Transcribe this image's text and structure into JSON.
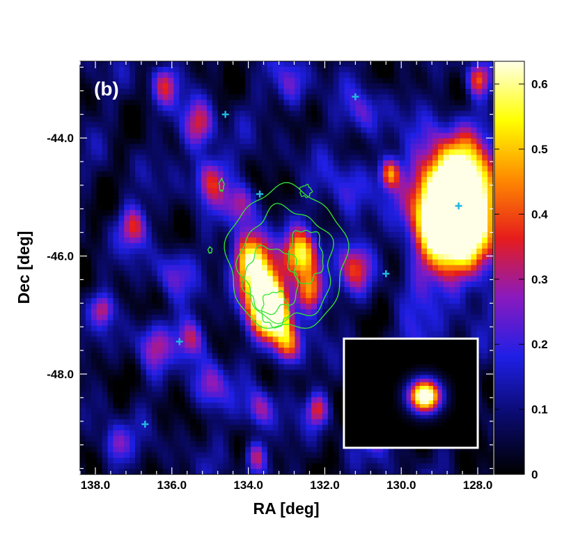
{
  "chart_data": {
    "type": "heatmap",
    "panel_label": "(b)",
    "xlabel": "RA [deg]",
    "ylabel": "Dec [deg]",
    "x_ticks": [
      "138.0",
      "136.0",
      "134.0",
      "132.0",
      "130.0",
      "128.0"
    ],
    "x_tick_values": [
      138.0,
      136.0,
      134.0,
      132.0,
      130.0,
      128.0
    ],
    "y_ticks": [
      "-44.0",
      "-46.0",
      "-48.0"
    ],
    "y_tick_values": [
      -44.0,
      -46.0,
      -48.0
    ],
    "xlim": [
      138.4,
      127.6
    ],
    "ylim": [
      -49.7,
      -42.7
    ],
    "x_reversed": true,
    "colorbar": {
      "ticks": [
        "0",
        "0.1",
        "0.2",
        "0.3",
        "0.4",
        "0.5",
        "0.6"
      ],
      "tick_values": [
        0,
        0.1,
        0.2,
        0.3,
        0.4,
        0.5,
        0.6
      ],
      "range": [
        0,
        0.635
      ],
      "colormap": [
        "#000000",
        "#0a0a6e",
        "#1f1fe6",
        "#8a1abf",
        "#e61c1c",
        "#ff8a00",
        "#ffff00",
        "#ffffe8"
      ]
    },
    "sources": [
      {
        "ra": 137.0,
        "dec": -45.5,
        "amp": 0.3,
        "sigma": 0.25
      },
      {
        "ra": 136.2,
        "dec": -43.1,
        "amp": 0.25,
        "sigma": 0.25
      },
      {
        "ra": 135.3,
        "dec": -43.8,
        "amp": 0.28,
        "sigma": 0.3
      },
      {
        "ra": 135.0,
        "dec": -44.7,
        "amp": 0.3,
        "sigma": 0.3
      },
      {
        "ra": 134.2,
        "dec": -45.1,
        "amp": 0.25,
        "sigma": 0.25
      },
      {
        "ra": 133.9,
        "dec": -46.1,
        "amp": 0.58,
        "sigma": 0.35
      },
      {
        "ra": 133.6,
        "dec": -46.7,
        "amp": 0.55,
        "sigma": 0.35
      },
      {
        "ra": 133.3,
        "dec": -47.0,
        "amp": 0.55,
        "sigma": 0.3
      },
      {
        "ra": 133.0,
        "dec": -47.5,
        "amp": 0.38,
        "sigma": 0.25
      },
      {
        "ra": 132.6,
        "dec": -46.0,
        "amp": 0.5,
        "sigma": 0.3
      },
      {
        "ra": 132.4,
        "dec": -46.6,
        "amp": 0.42,
        "sigma": 0.25
      },
      {
        "ra": 132.9,
        "dec": -43.1,
        "amp": 0.2,
        "sigma": 0.3
      },
      {
        "ra": 131.0,
        "dec": -43.6,
        "amp": 0.2,
        "sigma": 0.3
      },
      {
        "ra": 130.3,
        "dec": -44.6,
        "amp": 0.35,
        "sigma": 0.18
      },
      {
        "ra": 131.2,
        "dec": -46.2,
        "amp": 0.28,
        "sigma": 0.3
      },
      {
        "ra": 128.6,
        "dec": -45.2,
        "amp": 1.2,
        "sigma": 0.7
      },
      {
        "ra": 128.0,
        "dec": -43.0,
        "amp": 0.32,
        "sigma": 0.2
      },
      {
        "ra": 137.8,
        "dec": -46.9,
        "amp": 0.25,
        "sigma": 0.2
      },
      {
        "ra": 136.5,
        "dec": -47.5,
        "amp": 0.22,
        "sigma": 0.3
      },
      {
        "ra": 135.5,
        "dec": -47.4,
        "amp": 0.3,
        "sigma": 0.25
      },
      {
        "ra": 135.0,
        "dec": -48.2,
        "amp": 0.22,
        "sigma": 0.3
      },
      {
        "ra": 133.7,
        "dec": -48.6,
        "amp": 0.25,
        "sigma": 0.25
      },
      {
        "ra": 132.2,
        "dec": -48.6,
        "amp": 0.28,
        "sigma": 0.2
      },
      {
        "ra": 130.6,
        "dec": -49.0,
        "amp": 0.22,
        "sigma": 0.25
      },
      {
        "ra": 133.8,
        "dec": -49.4,
        "amp": 0.28,
        "sigma": 0.2
      },
      {
        "ra": 137.5,
        "dec": -49.2,
        "amp": 0.22,
        "sigma": 0.25
      },
      {
        "ra": 136.0,
        "dec": -46.3,
        "amp": 0.18,
        "sigma": 0.3
      },
      {
        "ra": 129.5,
        "dec": -47.5,
        "amp": 0.15,
        "sigma": 0.4
      },
      {
        "ra": 131.5,
        "dec": -44.9,
        "amp": 0.15,
        "sigma": 0.4
      }
    ],
    "markers": [
      {
        "ra": 134.6,
        "dec": -43.6
      },
      {
        "ra": 131.2,
        "dec": -43.3
      },
      {
        "ra": 133.7,
        "dec": -44.95
      },
      {
        "ra": 128.5,
        "dec": -45.15
      },
      {
        "ra": 130.4,
        "dec": -46.3
      },
      {
        "ra": 135.8,
        "dec": -47.45
      },
      {
        "ra": 136.7,
        "dec": -48.85
      }
    ],
    "marker_color": "#1fb8e0",
    "contour_color": "#33e633",
    "contours": [
      {
        "ra": 133.0,
        "dec": -46.05,
        "r_ra": 1.55,
        "r_dec": 1.2,
        "wobble": 0.08
      },
      {
        "ra": 133.0,
        "dec": -46.15,
        "r_ra": 1.2,
        "r_dec": 0.95,
        "wobble": 0.12
      },
      {
        "ra": 133.4,
        "dec": -46.4,
        "r_ra": 0.7,
        "r_dec": 0.55,
        "wobble": 0.15
      },
      {
        "ra": 132.5,
        "dec": -46.0,
        "r_ra": 0.45,
        "r_dec": 0.45,
        "wobble": 0.15
      },
      {
        "ra": 133.3,
        "dec": -46.9,
        "r_ra": 0.35,
        "r_dec": 0.3,
        "wobble": 0.15
      },
      {
        "ra": 132.5,
        "dec": -44.9,
        "r_ra": 0.15,
        "r_dec": 0.1,
        "wobble": 0.2
      },
      {
        "ra": 134.7,
        "dec": -44.8,
        "r_ra": 0.06,
        "r_dec": 0.1,
        "wobble": 0.2
      },
      {
        "ra": 135.0,
        "dec": -45.9,
        "r_ra": 0.05,
        "r_dec": 0.05,
        "wobble": 0.2
      }
    ],
    "psf_inset": {
      "ra_min": 128.0,
      "ra_max": 131.5,
      "dec_min": -49.25,
      "dec_max": -47.4,
      "amp": 0.75
    }
  }
}
